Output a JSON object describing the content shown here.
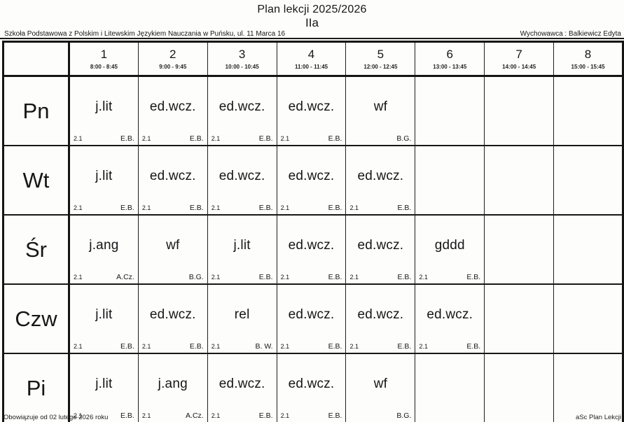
{
  "header": {
    "title": "Plan lekcji 2025/2026",
    "class_name": "IIa",
    "school": "Szkoła Podstawowa z Polskim i Litewskim Językiem Nauczania w Puńsku, ul. 11 Marca 16",
    "tutor": "Wychowawca : Balkiewicz Edyta"
  },
  "periods": [
    {
      "number": "1",
      "time": "8:00 - 8:45"
    },
    {
      "number": "2",
      "time": "9:00 - 9:45"
    },
    {
      "number": "3",
      "time": "10:00 - 10:45"
    },
    {
      "number": "4",
      "time": "11:00 - 11:45"
    },
    {
      "number": "5",
      "time": "12:00 - 12:45"
    },
    {
      "number": "6",
      "time": "13:00 - 13:45"
    },
    {
      "number": "7",
      "time": "14:00 - 14:45"
    },
    {
      "number": "8",
      "time": "15:00 - 15:45"
    }
  ],
  "days": [
    {
      "label": "Pn",
      "lessons": [
        {
          "subject": "j.lit",
          "room": "2.1",
          "teacher": "E.B."
        },
        {
          "subject": "ed.wcz.",
          "room": "2.1",
          "teacher": "E.B."
        },
        {
          "subject": "ed.wcz.",
          "room": "2.1",
          "teacher": "E.B."
        },
        {
          "subject": "ed.wcz.",
          "room": "2.1",
          "teacher": "E.B."
        },
        {
          "subject": "wf",
          "room": "",
          "teacher": "B.G."
        },
        null,
        null,
        null
      ]
    },
    {
      "label": "Wt",
      "lessons": [
        {
          "subject": "j.lit",
          "room": "2.1",
          "teacher": "E.B."
        },
        {
          "subject": "ed.wcz.",
          "room": "2.1",
          "teacher": "E.B."
        },
        {
          "subject": "ed.wcz.",
          "room": "2.1",
          "teacher": "E.B."
        },
        {
          "subject": "ed.wcz.",
          "room": "2.1",
          "teacher": "E.B."
        },
        {
          "subject": "ed.wcz.",
          "room": "2.1",
          "teacher": "E.B."
        },
        null,
        null,
        null
      ]
    },
    {
      "label": "Śr",
      "lessons": [
        {
          "subject": "j.ang",
          "room": "2.1",
          "teacher": "A.Cz."
        },
        {
          "subject": "wf",
          "room": "",
          "teacher": "B.G."
        },
        {
          "subject": "j.lit",
          "room": "2.1",
          "teacher": "E.B."
        },
        {
          "subject": "ed.wcz.",
          "room": "2.1",
          "teacher": "E.B."
        },
        {
          "subject": "ed.wcz.",
          "room": "2.1",
          "teacher": "E.B."
        },
        {
          "subject": "gddd",
          "room": "2.1",
          "teacher": "E.B."
        },
        null,
        null
      ]
    },
    {
      "label": "Czw",
      "lessons": [
        {
          "subject": "j.lit",
          "room": "2.1",
          "teacher": "E.B."
        },
        {
          "subject": "ed.wcz.",
          "room": "2.1",
          "teacher": "E.B."
        },
        {
          "subject": "rel",
          "room": "2.1",
          "teacher": "B. W."
        },
        {
          "subject": "ed.wcz.",
          "room": "2.1",
          "teacher": "E.B."
        },
        {
          "subject": "ed.wcz.",
          "room": "2.1",
          "teacher": "E.B."
        },
        {
          "subject": "ed.wcz.",
          "room": "2.1",
          "teacher": "E.B."
        },
        null,
        null
      ]
    },
    {
      "label": "Pi",
      "lessons": [
        {
          "subject": "j.lit",
          "room": "2.1",
          "teacher": "E.B."
        },
        {
          "subject": "j.ang",
          "room": "2.1",
          "teacher": "A.Cz."
        },
        {
          "subject": "ed.wcz.",
          "room": "2.1",
          "teacher": "E.B."
        },
        {
          "subject": "ed.wcz.",
          "room": "2.1",
          "teacher": "E.B."
        },
        {
          "subject": "wf",
          "room": "",
          "teacher": "B.G."
        },
        null,
        null,
        null
      ]
    }
  ],
  "footer": {
    "valid_from": "Obowiązuje od 02 lutego 2026 roku",
    "generator": "aSc Plan Lekcji"
  }
}
